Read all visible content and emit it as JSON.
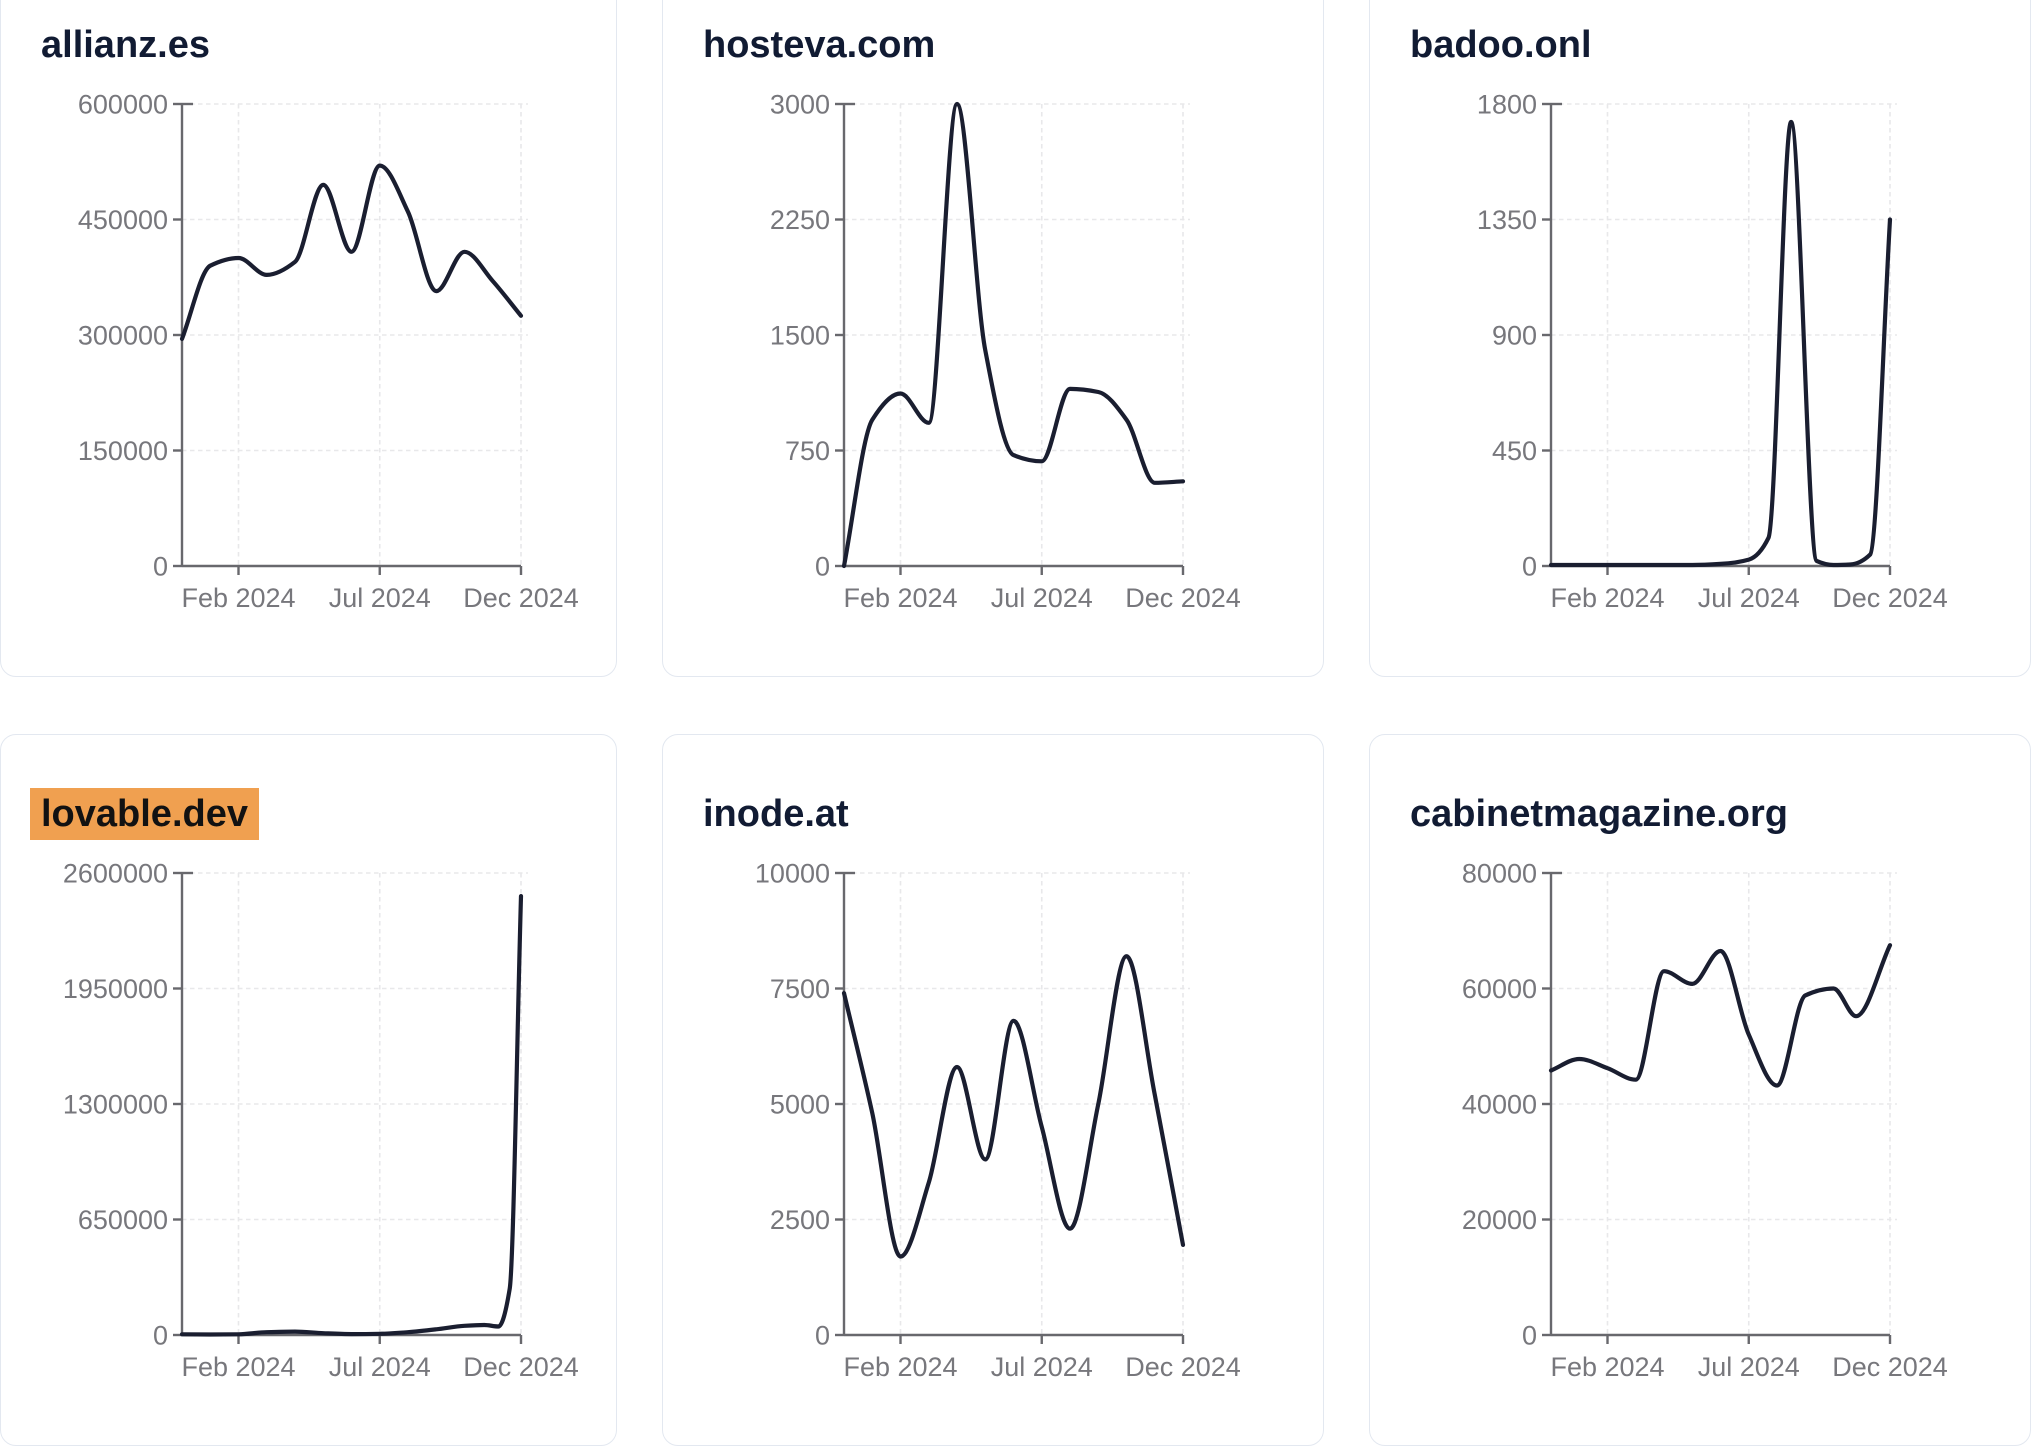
{
  "style": {
    "page_bg": "#ffffff",
    "card_bg": "#ffffff",
    "card_border_color": "#e3e8f0",
    "title_color": "#111b33",
    "highlight_color": "#f0a050",
    "highlight_text_color": "#121212",
    "line_color": "#1a1e30",
    "axis_color": "#68686d",
    "tick_label_color": "#77777c",
    "grid_color": "#e8e8ea"
  },
  "x_axis_tick_labels": [
    "Feb 2024",
    "Jul 2024",
    "Dec 2024"
  ],
  "chart_data": [
    {
      "type": "line",
      "domain": "allianz.es",
      "highlighted": false,
      "ylim": [
        0,
        600000
      ],
      "y_ticks": [
        0,
        150000,
        300000,
        450000,
        600000
      ],
      "x_tick_labels": [
        "Feb 2024",
        "Jul 2024",
        "Dec 2024"
      ],
      "x_tick_months": [
        2,
        7,
        12
      ],
      "x_months": [
        0,
        1,
        2,
        3,
        4,
        5,
        6,
        7,
        8,
        9,
        10,
        11,
        12
      ],
      "values": [
        295000,
        390000,
        400000,
        378000,
        395000,
        495000,
        408000,
        520000,
        460000,
        357000,
        408000,
        370000,
        325000
      ]
    },
    {
      "type": "line",
      "domain": "hosteva.com",
      "highlighted": false,
      "ylim": [
        0,
        3000
      ],
      "y_ticks": [
        0,
        750,
        1500,
        2250,
        3000
      ],
      "x_tick_labels": [
        "Feb 2024",
        "Jul 2024",
        "Dec 2024"
      ],
      "x_tick_months": [
        2,
        7,
        12
      ],
      "x_months": [
        0,
        1,
        2,
        3,
        4,
        5,
        6,
        7,
        8,
        9,
        10,
        11,
        12
      ],
      "values": [
        0,
        950,
        1120,
        930,
        3000,
        1400,
        720,
        680,
        1150,
        1130,
        950,
        540,
        550
      ]
    },
    {
      "type": "line",
      "domain": "badoo.onl",
      "highlighted": false,
      "ylim": [
        0,
        1800
      ],
      "y_ticks": [
        0,
        450,
        900,
        1350,
        1800
      ],
      "x_tick_labels": [
        "Feb 2024",
        "Jul 2024",
        "Dec 2024"
      ],
      "x_tick_months": [
        2,
        7,
        12
      ],
      "x_months": [
        0,
        1,
        2,
        3,
        4,
        5,
        6,
        7,
        7.7,
        8.5,
        9.4,
        10,
        10.6,
        11.3,
        12
      ],
      "values": [
        4,
        4,
        4,
        4,
        4,
        4,
        8,
        25,
        110,
        1730,
        20,
        4,
        6,
        45,
        1350
      ]
    },
    {
      "type": "line",
      "domain": "lovable.dev",
      "highlighted": true,
      "ylim": [
        0,
        2600000
      ],
      "y_ticks": [
        0,
        650000,
        1300000,
        1950000,
        2600000
      ],
      "x_tick_labels": [
        "Feb 2024",
        "Jul 2024",
        "Dec 2024"
      ],
      "x_tick_months": [
        2,
        7,
        12
      ],
      "x_months": [
        0,
        1,
        2,
        3,
        4,
        5,
        6,
        7,
        8,
        9,
        10,
        10.7,
        11.2,
        11.6,
        12
      ],
      "values": [
        4000,
        3000,
        4000,
        16000,
        19000,
        10000,
        5000,
        7000,
        16000,
        32000,
        52000,
        56000,
        48000,
        260000,
        2470000
      ]
    },
    {
      "type": "line",
      "domain": "inode.at",
      "highlighted": false,
      "ylim": [
        0,
        10000
      ],
      "y_ticks": [
        0,
        2500,
        5000,
        7500,
        10000
      ],
      "x_tick_labels": [
        "Feb 2024",
        "Jul 2024",
        "Dec 2024"
      ],
      "x_tick_months": [
        2,
        7,
        12
      ],
      "x_months": [
        0,
        1,
        2,
        3,
        4,
        5,
        6,
        7,
        8,
        9,
        10,
        11,
        12
      ],
      "values": [
        7400,
        4800,
        1700,
        3300,
        5800,
        3800,
        6800,
        4500,
        2300,
        5000,
        8200,
        5200,
        1950
      ]
    },
    {
      "type": "line",
      "domain": "cabinetmagazine.org",
      "highlighted": false,
      "ylim": [
        0,
        80000
      ],
      "y_ticks": [
        0,
        20000,
        40000,
        60000,
        80000
      ],
      "x_tick_labels": [
        "Feb 2024",
        "Jul 2024",
        "Dec 2024"
      ],
      "x_tick_months": [
        2,
        7,
        12
      ],
      "x_months": [
        0,
        1,
        2,
        3,
        4,
        5,
        6,
        7,
        8,
        9,
        10,
        10.8,
        12
      ],
      "values": [
        45800,
        47800,
        46200,
        44200,
        63000,
        60800,
        66500,
        52000,
        43200,
        58800,
        60000,
        55200,
        67500
      ]
    }
  ]
}
